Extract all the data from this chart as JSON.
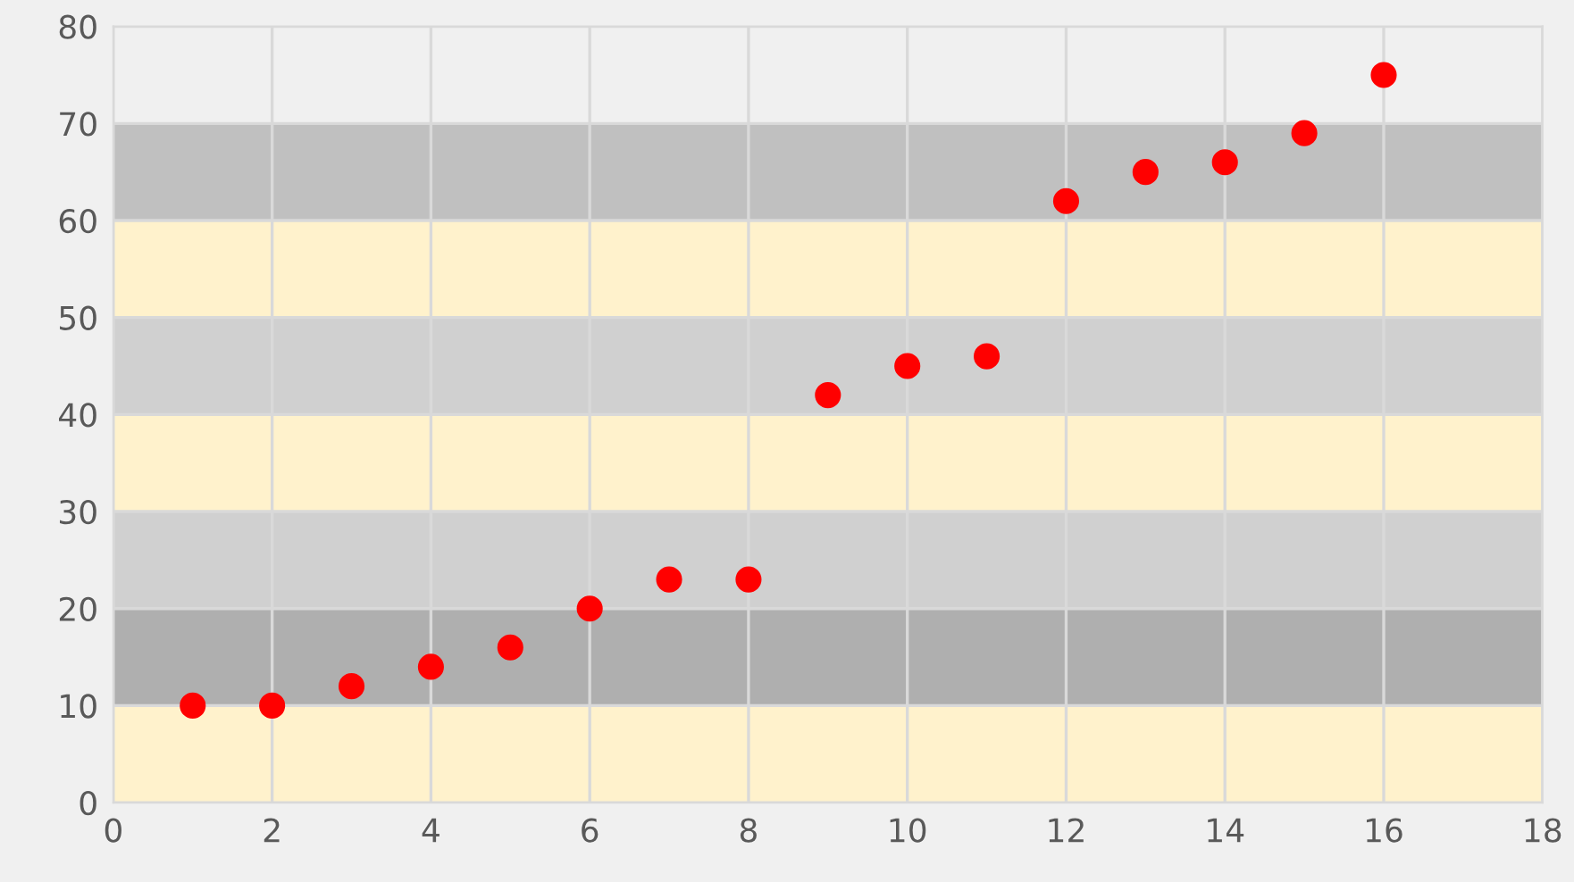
{
  "chart_data": {
    "type": "scatter",
    "x": [
      1,
      2,
      3,
      4,
      5,
      6,
      7,
      8,
      9,
      10,
      11,
      12,
      13,
      14,
      15,
      16
    ],
    "series": [
      {
        "color": "#ff0000",
        "values": [
          10,
          10,
          12,
          14,
          16,
          20,
          23,
          23,
          42,
          45,
          46,
          62,
          65,
          66,
          69,
          75
        ]
      }
    ],
    "marker": "circle",
    "xlim": [
      0,
      18
    ],
    "xticks": [
      0,
      2,
      4,
      6,
      8,
      10,
      12,
      14,
      16,
      18
    ],
    "ylim": [
      0,
      80
    ],
    "yticks": [
      0,
      10,
      20,
      30,
      40,
      50,
      60,
      70,
      80
    ],
    "grid": true,
    "bands": [
      {
        "axis": "y",
        "from": 0,
        "to": 10,
        "color": "#fff2cc"
      },
      {
        "axis": "y",
        "from": 10,
        "to": 20,
        "color": "#afafaf"
      },
      {
        "axis": "y",
        "from": 20,
        "to": 30,
        "color": "#d0d0d0"
      },
      {
        "axis": "y",
        "from": 30,
        "to": 40,
        "color": "#fff2cc"
      },
      {
        "axis": "y",
        "from": 40,
        "to": 50,
        "color": "#d0d0d0"
      },
      {
        "axis": "y",
        "from": 50,
        "to": 60,
        "color": "#fff2cc"
      },
      {
        "axis": "y",
        "from": 60,
        "to": 70,
        "color": "#c0c0c0"
      }
    ]
  }
}
